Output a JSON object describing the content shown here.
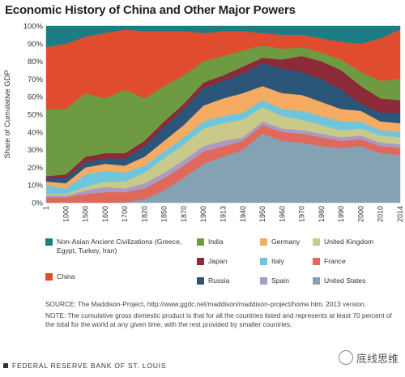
{
  "chart_data": {
    "type": "area",
    "stacked": true,
    "title": "Economic History of China and Other Major Powers",
    "ylabel": "Share of Cumulative GDP",
    "xlabel": "",
    "ylim": [
      0,
      100
    ],
    "y_ticks": [
      "0%",
      "10%",
      "20%",
      "30%",
      "40%",
      "50%",
      "60%",
      "70%",
      "80%",
      "90%",
      "100%"
    ],
    "x": [
      "1",
      "1000",
      "1500",
      "1600",
      "1700",
      "1820",
      "1850",
      "1870",
      "1900",
      "1913",
      "1940",
      "1950",
      "1960",
      "1970",
      "1980",
      "1990",
      "2000",
      "2010",
      "2014"
    ],
    "series": [
      {
        "name": "United States",
        "color": "#85a2b2",
        "values": [
          0,
          0,
          0,
          0,
          0,
          2,
          7,
          14,
          22,
          26,
          30,
          39,
          35,
          34,
          32,
          31,
          32,
          28,
          27
        ]
      },
      {
        "name": "France",
        "color": "#df6a5c",
        "values": [
          3,
          3,
          5,
          6,
          6,
          6,
          7,
          7,
          7,
          6,
          5,
          5,
          5,
          5,
          5,
          4,
          4,
          4,
          4
        ]
      },
      {
        "name": "Spain",
        "color": "#a99ac6",
        "values": [
          1,
          1,
          2,
          3,
          2,
          3,
          3,
          3,
          3,
          3,
          2,
          2,
          2,
          2,
          2,
          2,
          2,
          2,
          2
        ]
      },
      {
        "name": "United Kingdom",
        "color": "#c9c98a",
        "values": [
          1,
          1,
          2,
          3,
          4,
          6,
          8,
          9,
          10,
          10,
          10,
          8,
          7,
          6,
          5,
          4,
          4,
          4,
          4
        ]
      },
      {
        "name": "Italy",
        "color": "#6fc6dc",
        "values": [
          5,
          3,
          7,
          6,
          5,
          4,
          4,
          4,
          4,
          4,
          4,
          4,
          4,
          5,
          5,
          5,
          4,
          3,
          3
        ]
      },
      {
        "name": "Germany",
        "color": "#f6ab62",
        "values": [
          2,
          3,
          4,
          4,
          4,
          5,
          6,
          7,
          9,
          10,
          11,
          8,
          9,
          9,
          8,
          7,
          6,
          5,
          5
        ]
      },
      {
        "name": "Russia",
        "color": "#2b5579",
        "values": [
          2,
          3,
          3,
          3,
          4,
          6,
          8,
          9,
          10,
          10,
          11,
          13,
          14,
          13,
          13,
          11,
          4,
          5,
          6
        ]
      },
      {
        "name": "Japan",
        "color": "#8c2a37",
        "values": [
          1,
          2,
          3,
          3,
          3,
          3,
          3,
          3,
          3,
          3,
          4,
          3,
          5,
          9,
          10,
          11,
          10,
          8,
          7
        ]
      },
      {
        "name": "India",
        "color": "#6e9b41",
        "values": [
          38,
          37,
          36,
          31,
          36,
          24,
          20,
          16,
          12,
          11,
          9,
          7,
          6,
          5,
          5,
          6,
          8,
          10,
          12
        ]
      },
      {
        "name": "China",
        "color": "#e04c2e",
        "values": [
          35,
          37,
          32,
          37,
          34,
          38,
          31,
          25,
          16,
          14,
          11,
          7,
          8,
          7,
          8,
          10,
          16,
          24,
          28
        ]
      },
      {
        "name": "Non-Asian Ancient Civilizations\n(Greece, Egypt, Turkey, Iran)",
        "color": "#1b7d86",
        "values": [
          12,
          10,
          6,
          4,
          2,
          3,
          3,
          3,
          4,
          3,
          3,
          4,
          5,
          5,
          7,
          9,
          10,
          7,
          2
        ]
      }
    ]
  },
  "title": "Economic History of China and Other Major Powers",
  "legend": {
    "ancient": "Non-Asian Ancient Civilizations (Greece, Egypt, Turkey, Iran)",
    "china": "China",
    "india": "India",
    "japan": "Japan",
    "russia": "Russia",
    "germany": "Germany",
    "italy": "Italy",
    "spain": "Spain",
    "uk": "United Kingdom",
    "france": "France",
    "us": "United States"
  },
  "source_note": "SOURCE: The Maddison-Project, http://www.ggdc.net/maddison/maddison-project/home.htm, 2013 version.",
  "gdp_note": "NOTE: The cumulative gross domestic product is that for all the countries listed and represents at least 70 percent of the total for the world at any given time, with the rest provided by smaller countries.",
  "footer": "FEDERAL RESERVE BANK OF ST. LOUIS",
  "watermark": "底线思维"
}
